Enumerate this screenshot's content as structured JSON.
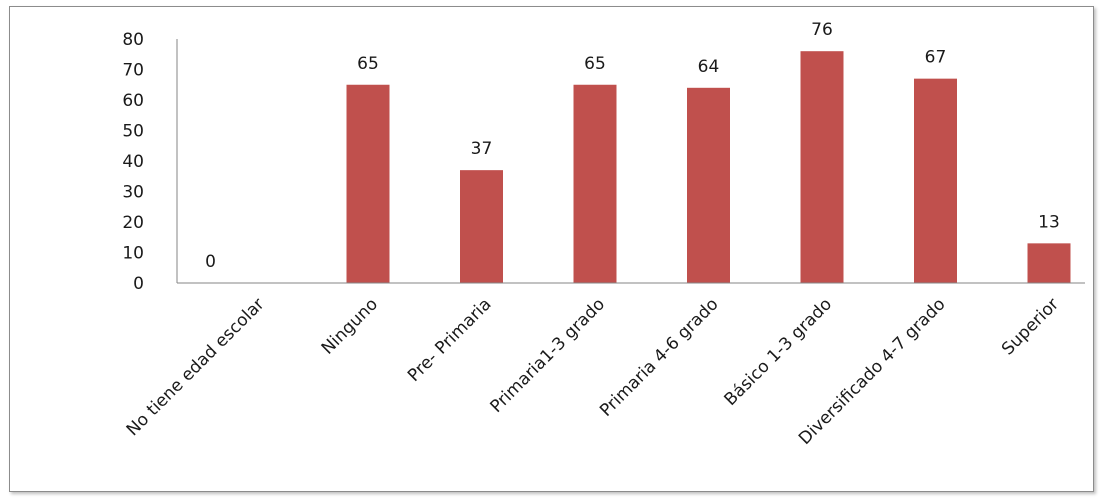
{
  "chart_data": {
    "type": "bar",
    "title": "",
    "xlabel": "",
    "ylabel": "",
    "ylim": [
      0,
      80
    ],
    "yticks": [
      0,
      10,
      20,
      30,
      40,
      50,
      60,
      70,
      80
    ],
    "grid": false,
    "legend": "none",
    "categories": [
      "No tiene edad escolar",
      "Ninguno",
      "Pre- Primaria",
      "Primaria1-3 grado",
      "Primaria 4-6 grado",
      "Básico 1-3 grado",
      "Diversificado    4-7 grado",
      "Superior"
    ],
    "values": [
      0,
      65,
      37,
      65,
      64,
      76,
      67,
      13
    ],
    "colors": {
      "bar": "#c0504d",
      "axis": "#868686"
    }
  }
}
